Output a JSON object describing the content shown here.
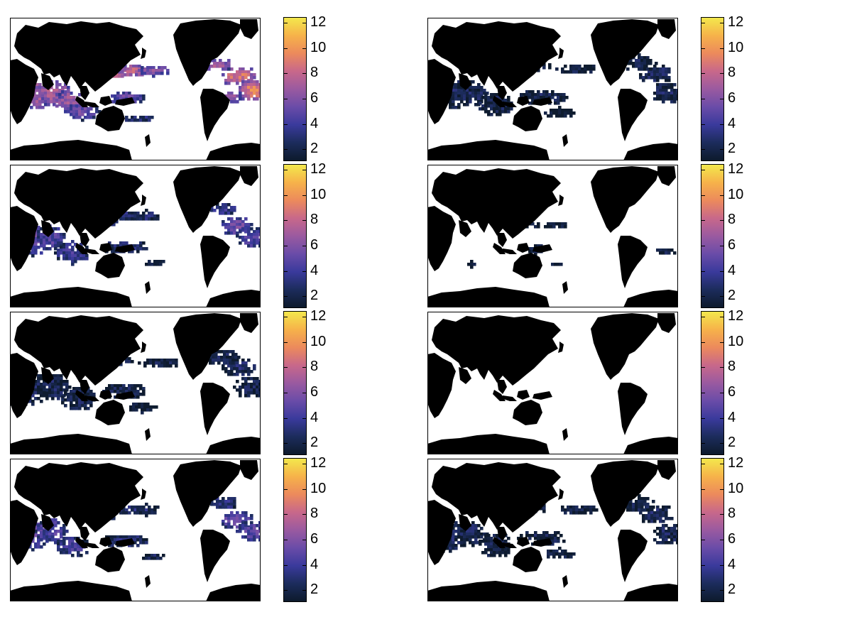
{
  "figure": {
    "colorbar_ticks": [
      "2",
      "4",
      "6",
      "8",
      "10",
      "12"
    ],
    "colorbar_range": [
      1.0,
      12.4
    ],
    "colormap": [
      "#0d1a2c",
      "#1c2c5c",
      "#3a3a9c",
      "#6a4ca8",
      "#9a5aa0",
      "#c8688a",
      "#ec8a5c",
      "#f6b24a",
      "#f3e84c"
    ],
    "land_color": "#000000",
    "ocean_color": "#ffffff",
    "panels": [
      {
        "id": "r1c1",
        "intensity": "high"
      },
      {
        "id": "r1c2",
        "intensity": "low"
      },
      {
        "id": "r2c1",
        "intensity": "medium"
      },
      {
        "id": "r2c2",
        "intensity": "minimal"
      },
      {
        "id": "r3c1",
        "intensity": "low"
      },
      {
        "id": "r3c2",
        "intensity": "none"
      },
      {
        "id": "r4c1",
        "intensity": "medium"
      },
      {
        "id": "r4c2",
        "intensity": "low"
      }
    ]
  }
}
